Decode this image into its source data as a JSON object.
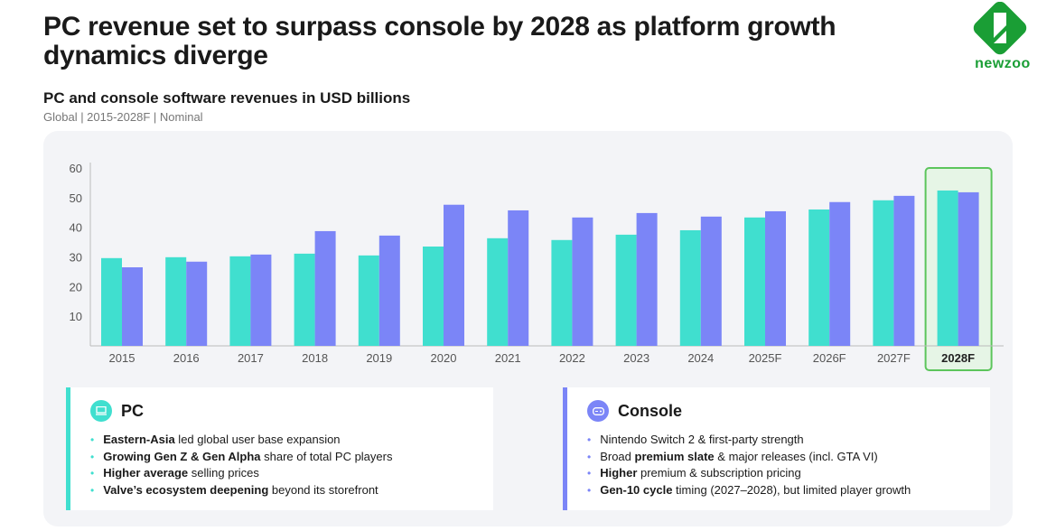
{
  "header": {
    "title": "PC revenue set to surpass console by 2028 as platform growth dynamics diverge",
    "subtitle": "PC and console software revenues in USD billions",
    "meta": "Global | 2015-2028F | Nominal",
    "logo_text": "newzoo"
  },
  "colors": {
    "pc": "#40dfcf",
    "console": "#7b85f7",
    "highlight": "#5cc55c",
    "brand": "#1a9e35"
  },
  "chart_data": {
    "type": "bar",
    "categories": [
      "2015",
      "2016",
      "2017",
      "2018",
      "2019",
      "2020",
      "2021",
      "2022",
      "2023",
      "2024",
      "2025F",
      "2026F",
      "2027F",
      "2028F"
    ],
    "series": [
      {
        "name": "PC",
        "values": [
          29.6,
          29.9,
          30.2,
          31.1,
          30.5,
          33.5,
          36.3,
          35.7,
          37.5,
          39.0,
          43.3,
          46.0,
          49.1,
          52.4
        ]
      },
      {
        "name": "Console",
        "values": [
          26.5,
          28.4,
          30.8,
          38.7,
          37.2,
          47.6,
          45.7,
          43.3,
          44.8,
          43.6,
          45.4,
          48.5,
          50.6,
          51.8
        ]
      }
    ],
    "yticks": [
      10,
      20,
      30,
      40,
      50,
      60
    ],
    "ylim": [
      0,
      60
    ],
    "highlight_category": "2028F",
    "grid": false
  },
  "cards": {
    "pc": {
      "title": "PC",
      "icon": "laptop-icon",
      "items": [
        {
          "bold": "Eastern-Asia",
          "rest": " led global user base expansion"
        },
        {
          "bold": "Growing Gen Z & Gen Alpha",
          "rest": " share of  total PC players"
        },
        {
          "bold": "Higher average",
          "rest": " selling prices"
        },
        {
          "bold": "Valve’s ecosystem deepening",
          "rest": " beyond its storefront"
        }
      ]
    },
    "console": {
      "title": "Console",
      "icon": "gamepad-icon",
      "items": [
        {
          "bold": "",
          "rest": "Nintendo Switch 2 &  first-party strength"
        },
        {
          "bold": "",
          "rest": "Broad ",
          "bold2": "premium slate",
          "rest2": " & major releases (incl. GTA VI)"
        },
        {
          "bold": "Higher",
          "rest": " premium &  subscription pricing"
        },
        {
          "bold": "Gen-10 cycle",
          "rest": " timing (2027–2028), but limited player growth"
        }
      ]
    }
  }
}
